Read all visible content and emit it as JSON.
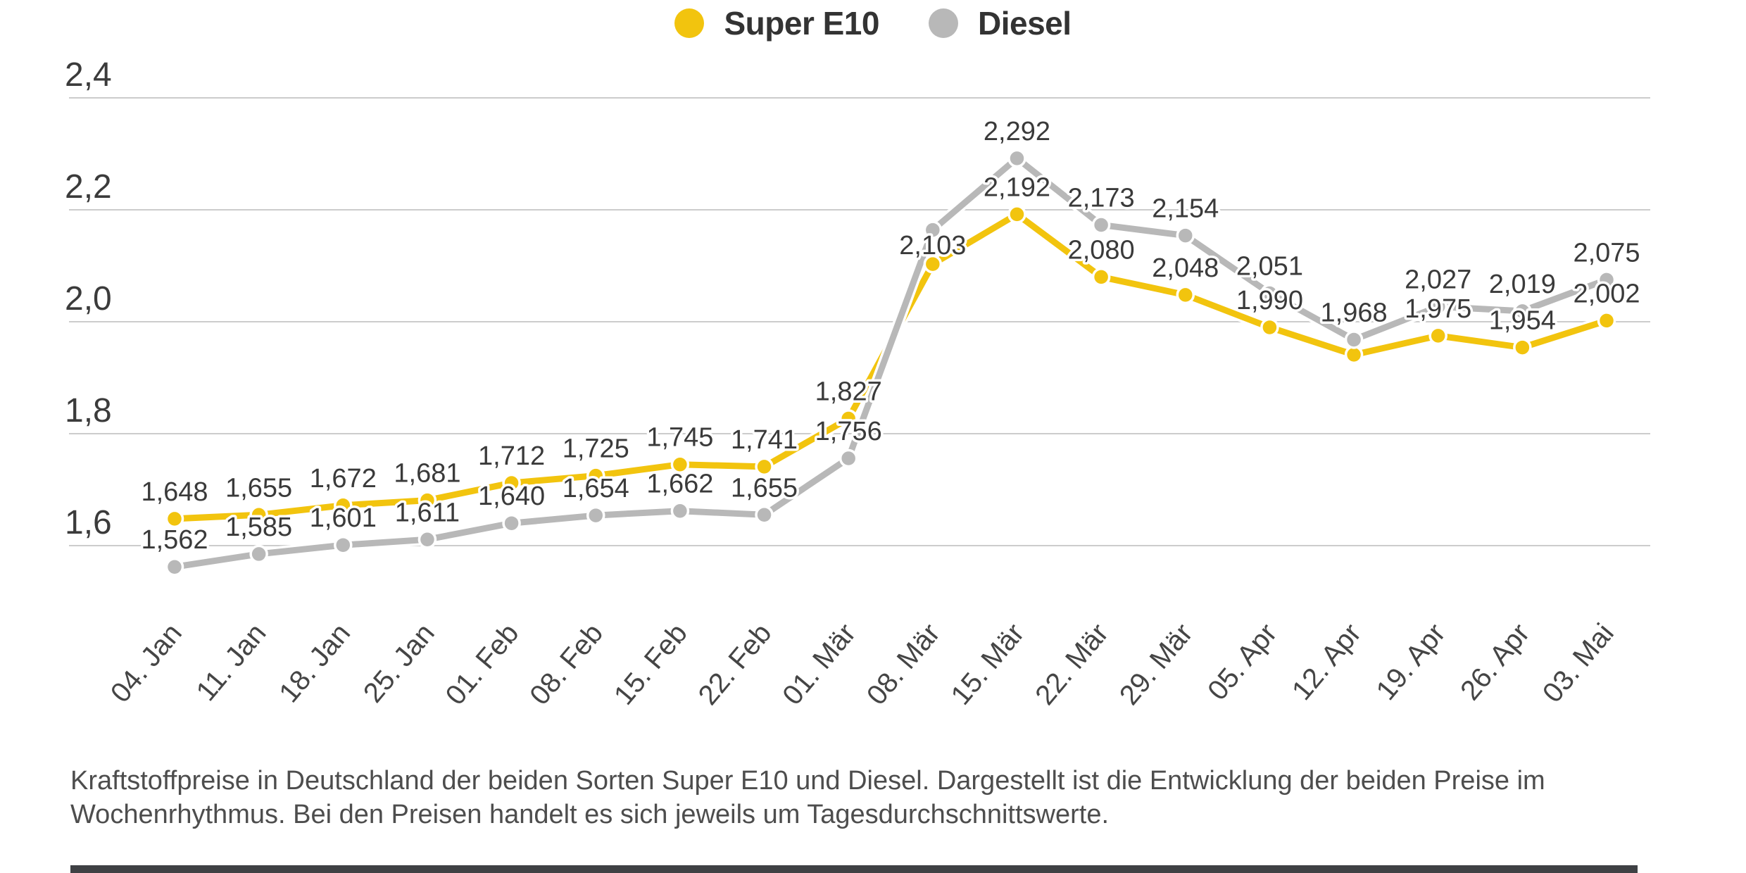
{
  "chart_data": {
    "type": "line",
    "title": "",
    "categories": [
      "04. Jan",
      "11. Jan",
      "18. Jan",
      "25. Jan",
      "01. Feb",
      "08. Feb",
      "15. Feb",
      "22. Feb",
      "01. Mär",
      "08. Mär",
      "15. Mär",
      "22. Mär",
      "29. Mär",
      "05. Apr",
      "12. Apr",
      "19. Apr",
      "26. Apr",
      "03. Mai"
    ],
    "y_axis": {
      "tick_labels": [
        "2,4",
        "2,2",
        "2,0",
        "1,8",
        "1,6"
      ],
      "tick_values": [
        2.4,
        2.2,
        2.0,
        1.8,
        1.6
      ],
      "range": [
        1.5,
        2.45
      ],
      "unit": "EUR/Liter"
    },
    "grid": true,
    "legend_position": "top",
    "series": [
      {
        "name": "Super E10",
        "color": "#f2c40e",
        "values": [
          1.648,
          1.655,
          1.672,
          1.681,
          1.712,
          1.725,
          1.745,
          1.741,
          1.827,
          2.103,
          2.192,
          2.08,
          2.048,
          1.99,
          1.941,
          1.975,
          1.954,
          2.002
        ],
        "point_labels": [
          "1,648",
          "1,655",
          "1,672",
          "1,681",
          "1,712",
          "1,725",
          "1,745",
          "1,741",
          "1,827",
          "2,103",
          "2,192",
          "2,080",
          "2,048",
          "1,990",
          "",
          "1,975",
          "1,954",
          "2,002"
        ]
      },
      {
        "name": "Diesel",
        "color": "#b8b8b8",
        "values": [
          1.562,
          1.585,
          1.601,
          1.611,
          1.64,
          1.654,
          1.662,
          1.655,
          1.756,
          2.164,
          2.292,
          2.173,
          2.154,
          2.051,
          1.968,
          2.027,
          2.019,
          2.075
        ],
        "point_labels": [
          "1,562",
          "1,585",
          "1,601",
          "1,611",
          "1,640",
          "1,654",
          "1,662",
          "1,655",
          "1,756",
          "",
          "2,292",
          "2,173",
          "2,154",
          "2,051",
          "1,968",
          "2,027",
          "2,019",
          "2,075"
        ]
      }
    ]
  },
  "caption": {
    "line1": "Kraftstoffpreise in Deutschland der beiden Sorten Super E10 und Diesel. Dargestellt ist die Entwicklung der beiden Preise im",
    "line2": "Wochenrhythmus. Bei den Preisen handelt es sich jeweils um Tagesdurchschnittswerte."
  }
}
